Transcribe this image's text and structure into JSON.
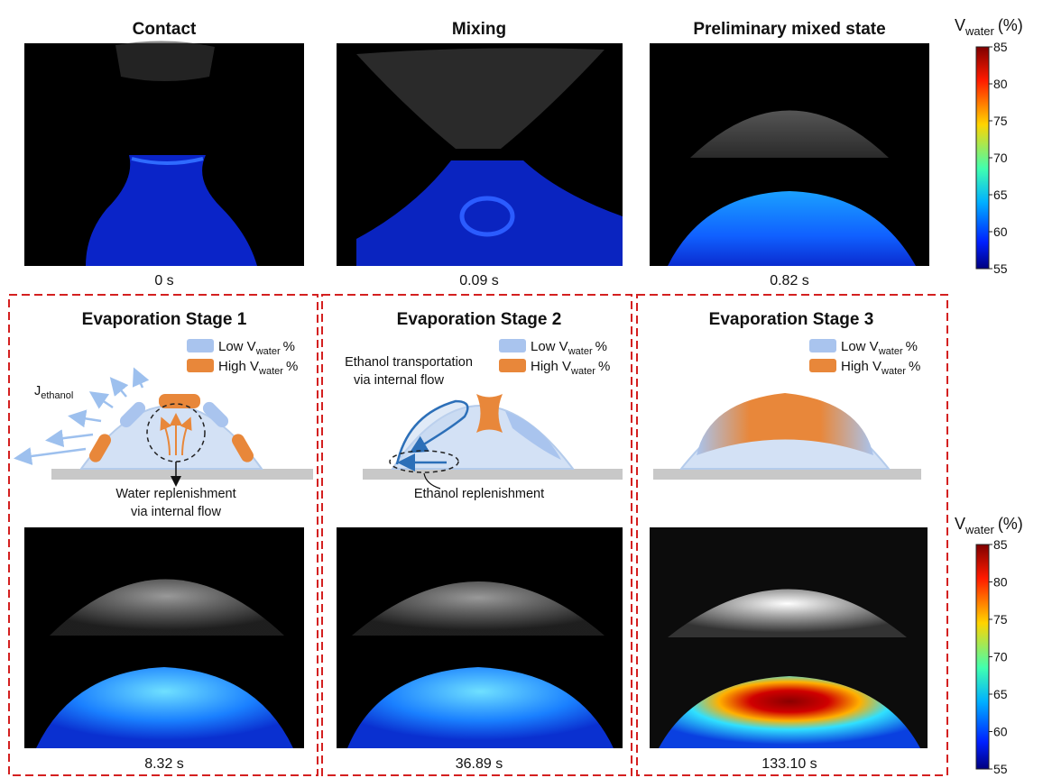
{
  "panels": [
    {
      "title": "Contact",
      "time": "0 s"
    },
    {
      "title": "Mixing",
      "time": "0.09 s"
    },
    {
      "title": "Preliminary mixed state",
      "time": "0.82 s"
    }
  ],
  "stages": [
    {
      "title": "Evaporation Stage 1",
      "time": "8.32 s",
      "flux_symbol": "J",
      "flux_subscript": "ethanol",
      "annotation_lines": [
        "Water replenishment",
        "via internal flow"
      ]
    },
    {
      "title": "Evaporation Stage 2",
      "time": "36.89 s",
      "transport_lines": [
        "Ethanol transportation",
        "via internal flow"
      ],
      "replenishment": "Ethanol replenishment"
    },
    {
      "title": "Evaporation Stage 3",
      "time": "133.10 s"
    }
  ],
  "legend": {
    "low": {
      "prefix": "Low V",
      "subscript": "water",
      "suffix": "%"
    },
    "high": {
      "prefix": "High V",
      "subscript": "water",
      "suffix": "%"
    }
  },
  "colorbar": {
    "symbol": "V",
    "subscript": "water",
    "unit": "(%)",
    "ticks": [
      85,
      80,
      75,
      70,
      65,
      60,
      55
    ]
  }
}
